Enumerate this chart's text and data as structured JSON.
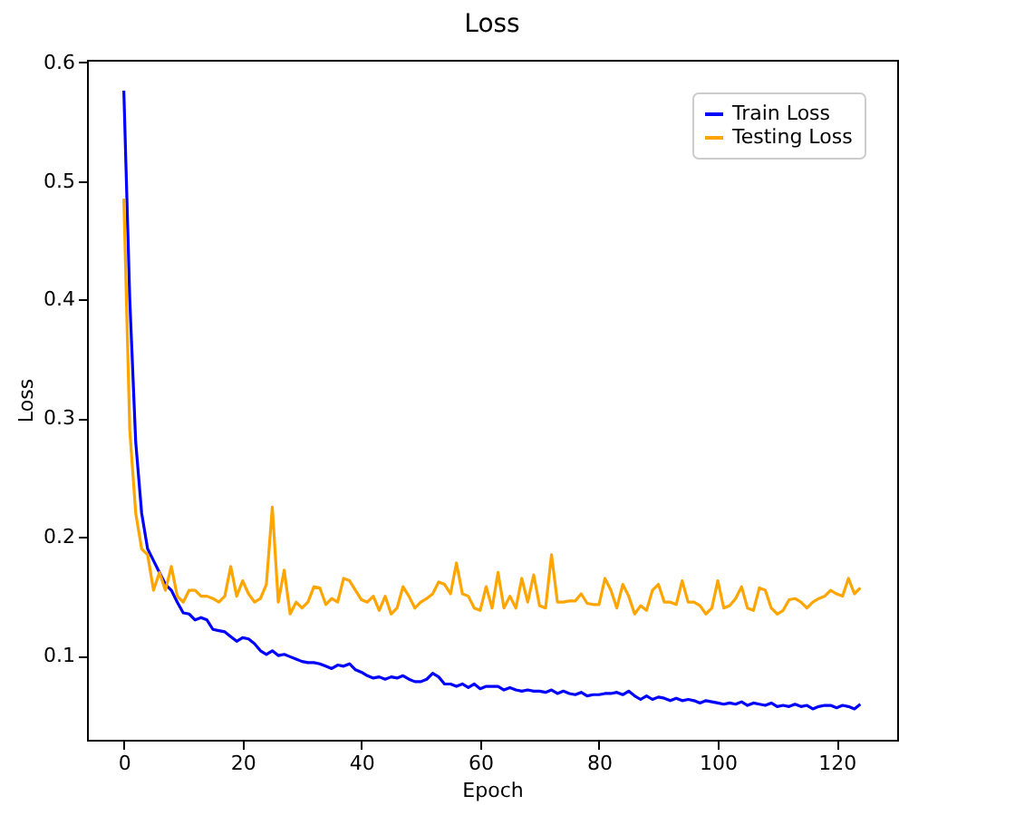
{
  "chart_data": {
    "type": "line",
    "title": "Loss",
    "xlabel": "Epoch",
    "ylabel": "Loss",
    "x": [
      0,
      1,
      2,
      3,
      4,
      5,
      6,
      7,
      8,
      9,
      10,
      11,
      12,
      13,
      14,
      15,
      16,
      17,
      18,
      19,
      20,
      21,
      22,
      23,
      24,
      25,
      26,
      27,
      28,
      29,
      30,
      31,
      32,
      33,
      34,
      35,
      36,
      37,
      38,
      39,
      40,
      41,
      42,
      43,
      44,
      45,
      46,
      47,
      48,
      49,
      50,
      51,
      52,
      53,
      54,
      55,
      56,
      57,
      58,
      59,
      60,
      61,
      62,
      63,
      64,
      65,
      66,
      67,
      68,
      69,
      70,
      71,
      72,
      73,
      74,
      75,
      76,
      77,
      78,
      79,
      80,
      81,
      82,
      83,
      84,
      85,
      86,
      87,
      88,
      89,
      90,
      91,
      92,
      93,
      94,
      95,
      96,
      97,
      98,
      99,
      100,
      101,
      102,
      103,
      104,
      105,
      106,
      107,
      108,
      109,
      110,
      111,
      112,
      113,
      114,
      115,
      116,
      117,
      118,
      119,
      120,
      121,
      122,
      123,
      124
    ],
    "series": [
      {
        "name": "Train Loss",
        "color": "#0000ff",
        "values": [
          0.576,
          0.4,
          0.28,
          0.22,
          0.19,
          0.18,
          0.17,
          0.16,
          0.155,
          0.145,
          0.136,
          0.135,
          0.13,
          0.132,
          0.13,
          0.122,
          0.121,
          0.12,
          0.116,
          0.112,
          0.115,
          0.114,
          0.11,
          0.104,
          0.101,
          0.104,
          0.1,
          0.101,
          0.099,
          0.097,
          0.095,
          0.094,
          0.094,
          0.093,
          0.091,
          0.089,
          0.092,
          0.091,
          0.093,
          0.088,
          0.086,
          0.083,
          0.081,
          0.082,
          0.08,
          0.082,
          0.081,
          0.083,
          0.08,
          0.078,
          0.078,
          0.08,
          0.085,
          0.082,
          0.076,
          0.076,
          0.074,
          0.076,
          0.073,
          0.076,
          0.072,
          0.074,
          0.074,
          0.074,
          0.071,
          0.073,
          0.071,
          0.07,
          0.071,
          0.07,
          0.07,
          0.069,
          0.071,
          0.068,
          0.07,
          0.068,
          0.067,
          0.069,
          0.066,
          0.067,
          0.067,
          0.068,
          0.068,
          0.069,
          0.067,
          0.07,
          0.066,
          0.063,
          0.066,
          0.063,
          0.065,
          0.064,
          0.062,
          0.064,
          0.062,
          0.063,
          0.062,
          0.06,
          0.062,
          0.061,
          0.06,
          0.059,
          0.06,
          0.059,
          0.061,
          0.058,
          0.06,
          0.059,
          0.058,
          0.06,
          0.057,
          0.058,
          0.057,
          0.059,
          0.057,
          0.058,
          0.055,
          0.057,
          0.058,
          0.058,
          0.056,
          0.058,
          0.057,
          0.055,
          0.059
        ]
      },
      {
        "name": "Testing Loss",
        "color": "#ffa500",
        "values": [
          0.485,
          0.29,
          0.22,
          0.19,
          0.185,
          0.155,
          0.17,
          0.155,
          0.175,
          0.15,
          0.145,
          0.155,
          0.155,
          0.15,
          0.15,
          0.148,
          0.145,
          0.15,
          0.175,
          0.15,
          0.163,
          0.152,
          0.145,
          0.148,
          0.16,
          0.225,
          0.145,
          0.172,
          0.135,
          0.145,
          0.14,
          0.145,
          0.158,
          0.157,
          0.143,
          0.148,
          0.145,
          0.165,
          0.163,
          0.155,
          0.147,
          0.145,
          0.15,
          0.138,
          0.15,
          0.135,
          0.14,
          0.158,
          0.15,
          0.14,
          0.145,
          0.148,
          0.152,
          0.162,
          0.16,
          0.152,
          0.178,
          0.152,
          0.15,
          0.14,
          0.138,
          0.158,
          0.14,
          0.17,
          0.14,
          0.15,
          0.14,
          0.165,
          0.145,
          0.168,
          0.142,
          0.14,
          0.185,
          0.145,
          0.145,
          0.146,
          0.146,
          0.152,
          0.144,
          0.143,
          0.143,
          0.165,
          0.155,
          0.14,
          0.16,
          0.15,
          0.135,
          0.142,
          0.138,
          0.155,
          0.16,
          0.145,
          0.145,
          0.143,
          0.163,
          0.145,
          0.145,
          0.142,
          0.135,
          0.14,
          0.163,
          0.14,
          0.142,
          0.148,
          0.158,
          0.14,
          0.138,
          0.157,
          0.155,
          0.14,
          0.135,
          0.138,
          0.147,
          0.148,
          0.145,
          0.14,
          0.145,
          0.148,
          0.15,
          0.155,
          0.152,
          0.15,
          0.165,
          0.152,
          0.157
        ]
      }
    ],
    "xlim": [
      -6.2,
      130.2
    ],
    "ylim": [
      0.029,
      0.602
    ],
    "xticks": [
      0,
      20,
      40,
      60,
      80,
      100,
      120
    ],
    "yticks": [
      0.1,
      0.2,
      0.3,
      0.4,
      0.5,
      0.6
    ],
    "legend": "top right",
    "grid": false,
    "line_style": "solid",
    "marker": "none"
  }
}
